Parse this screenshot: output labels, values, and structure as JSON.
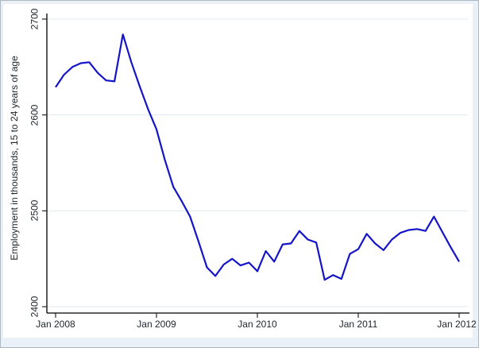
{
  "window": {
    "background_color": "#e9f0f7",
    "plot_background_color": "#ffffff",
    "border_color": "#aeb8c0",
    "axis_color": "#000000",
    "gridline_color": "#dfeaf0",
    "text_color": "#22272c"
  },
  "chart_data": {
    "type": "line",
    "title": "",
    "xlabel": "",
    "ylabel": "Employment in thousands, 15 to 24 years of age",
    "ylim": [
      2390,
      2710
    ],
    "yticks": [
      "2400",
      "2500",
      "2600",
      "2700"
    ],
    "xticks": [
      "Jan 2008",
      "Jan 2009",
      "Jan 2010",
      "Jan 2011",
      "Jan 2012"
    ],
    "grid": "horizontal-only",
    "legend": "none",
    "frequency": "monthly",
    "series": [
      {
        "name": "employment-15-24",
        "color": "#1414c8",
        "points": [
          [
            "2008-01",
            2629
          ],
          [
            "2008-02",
            2642
          ],
          [
            "2008-03",
            2650
          ],
          [
            "2008-04",
            2654
          ],
          [
            "2008-05",
            2655
          ],
          [
            "2008-06",
            2644
          ],
          [
            "2008-07",
            2636
          ],
          [
            "2008-08",
            2635
          ],
          [
            "2008-09",
            2684
          ],
          [
            "2008-10",
            2655
          ],
          [
            "2008-11",
            2630
          ],
          [
            "2008-12",
            2606
          ],
          [
            "2009-01",
            2585
          ],
          [
            "2009-02",
            2553
          ],
          [
            "2009-03",
            2525
          ],
          [
            "2009-04",
            2510
          ],
          [
            "2009-05",
            2494
          ],
          [
            "2009-06",
            2468
          ],
          [
            "2009-07",
            2441
          ],
          [
            "2009-08",
            2432
          ],
          [
            "2009-09",
            2444
          ],
          [
            "2009-10",
            2450
          ],
          [
            "2009-11",
            2443
          ],
          [
            "2009-12",
            2446
          ],
          [
            "2010-01",
            2437
          ],
          [
            "2010-02",
            2458
          ],
          [
            "2010-03",
            2447
          ],
          [
            "2010-04",
            2465
          ],
          [
            "2010-05",
            2466
          ],
          [
            "2010-06",
            2479
          ],
          [
            "2010-07",
            2470
          ],
          [
            "2010-08",
            2467
          ],
          [
            "2010-09",
            2428
          ],
          [
            "2010-10",
            2433
          ],
          [
            "2010-11",
            2429
          ],
          [
            "2010-12",
            2455
          ],
          [
            "2011-01",
            2460
          ],
          [
            "2011-02",
            2476
          ],
          [
            "2011-03",
            2466
          ],
          [
            "2011-04",
            2459
          ],
          [
            "2011-05",
            2470
          ],
          [
            "2011-06",
            2477
          ],
          [
            "2011-07",
            2480
          ],
          [
            "2011-08",
            2481
          ],
          [
            "2011-09",
            2479
          ],
          [
            "2011-10",
            2494
          ],
          [
            "2011-11",
            2478
          ],
          [
            "2011-12",
            2462
          ],
          [
            "2012-01",
            2447
          ]
        ]
      }
    ]
  }
}
